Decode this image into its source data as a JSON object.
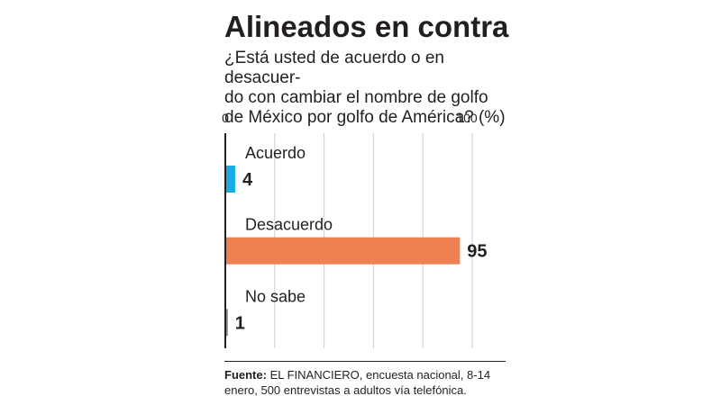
{
  "chart_data": {
    "type": "bar",
    "orientation": "horizontal",
    "title": "Alineados en contra",
    "subtitle": "¿Está usted de acuerdo o en desacuer-do con cambiar el nombre de golfo de México por golfo de América? (%)",
    "subtitle_lines": [
      "¿Está usted de acuerdo o en desacuer-",
      "do con cambiar el nombre de golfo",
      "de México por golfo de América? (%)"
    ],
    "categories": [
      "Acuerdo",
      "Desacuerdo",
      "No sabe"
    ],
    "values": [
      4,
      95,
      1
    ],
    "colors": [
      "#1aace3",
      "#ee8152",
      "#8a8787"
    ],
    "xlim": [
      0,
      100
    ],
    "tick_labels": [
      "0",
      "100"
    ],
    "grid": true
  },
  "source": {
    "label": "Fuente:",
    "text": "EL FINANCIERO, encuesta nacional, 8-14 enero, 500 entrevistas a adultos vía telefónica."
  }
}
